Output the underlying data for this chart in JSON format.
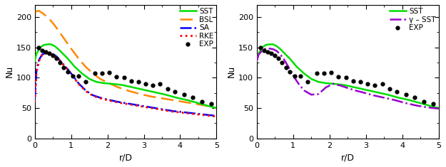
{
  "xlim": [
    0,
    5
  ],
  "ylim": [
    0,
    220
  ],
  "yticks": [
    0,
    50,
    100,
    150,
    200
  ],
  "xticks": [
    0,
    1,
    2,
    3,
    4,
    5
  ],
  "xlabel": "r/D",
  "ylabel": "Nu",
  "background": "#ffffff",
  "sst_x": [
    0.0,
    0.05,
    0.15,
    0.25,
    0.35,
    0.45,
    0.55,
    0.65,
    0.75,
    0.9,
    1.1,
    1.3,
    1.5,
    1.7,
    1.9,
    2.1,
    2.4,
    2.7,
    3.0,
    3.3,
    3.6,
    3.9,
    4.2,
    4.5,
    4.8,
    5.0
  ],
  "sst_y": [
    128,
    140,
    150,
    154,
    155,
    155,
    152,
    147,
    141,
    132,
    118,
    107,
    98,
    93,
    91,
    90,
    88,
    84,
    80,
    76,
    72,
    67,
    63,
    58,
    53,
    50
  ],
  "bsl_x": [
    0.02,
    0.06,
    0.12,
    0.2,
    0.35,
    0.5,
    0.65,
    0.8,
    1.0,
    1.2,
    1.4,
    1.6,
    1.8,
    2.0,
    2.3,
    2.6,
    2.9,
    3.2,
    3.5,
    3.8,
    4.1,
    4.4,
    4.7,
    5.0
  ],
  "bsl_y": [
    208,
    210,
    210,
    207,
    200,
    190,
    178,
    165,
    148,
    132,
    118,
    107,
    98,
    92,
    84,
    78,
    73,
    69,
    66,
    63,
    60,
    57,
    54,
    50
  ],
  "sa_x": [
    0.0,
    0.05,
    0.12,
    0.2,
    0.3,
    0.4,
    0.5,
    0.6,
    0.7,
    0.85,
    1.0,
    1.2,
    1.4,
    1.6,
    1.8,
    2.0,
    2.3,
    2.6,
    2.9,
    3.2,
    3.5,
    3.8,
    4.1,
    4.4,
    4.7,
    5.0
  ],
  "sa_y": [
    65,
    115,
    130,
    138,
    141,
    141,
    139,
    135,
    128,
    118,
    107,
    91,
    79,
    71,
    67,
    64,
    60,
    57,
    54,
    51,
    48,
    45,
    43,
    41,
    39,
    37
  ],
  "rke_x": [
    0.0,
    0.05,
    0.12,
    0.2,
    0.3,
    0.4,
    0.5,
    0.6,
    0.7,
    0.85,
    1.0,
    1.2,
    1.4,
    1.6,
    1.8,
    2.0,
    2.3,
    2.6,
    2.9,
    3.2,
    3.5,
    3.8,
    4.1,
    4.4,
    4.7,
    5.0
  ],
  "rke_y": [
    60,
    110,
    128,
    137,
    140,
    140,
    138,
    133,
    127,
    117,
    106,
    90,
    78,
    70,
    66,
    63,
    59,
    56,
    53,
    50,
    47,
    44,
    42,
    40,
    38,
    36
  ],
  "exp1_x": [
    0.1,
    0.2,
    0.3,
    0.4,
    0.5,
    0.6,
    0.7,
    0.8,
    0.9,
    1.05,
    1.2,
    1.4,
    1.65,
    1.85,
    2.05,
    2.25,
    2.45,
    2.65,
    2.85,
    3.05,
    3.25,
    3.45,
    3.65,
    3.85,
    4.1,
    4.35,
    4.6,
    4.85
  ],
  "exp1_y": [
    150,
    145,
    143,
    140,
    137,
    132,
    125,
    117,
    110,
    103,
    103,
    93,
    107,
    107,
    108,
    102,
    100,
    95,
    93,
    90,
    88,
    90,
    82,
    77,
    72,
    67,
    61,
    57
  ],
  "gamma_sst_x": [
    0.0,
    0.05,
    0.15,
    0.25,
    0.35,
    0.45,
    0.55,
    0.65,
    0.75,
    0.85,
    0.95,
    1.05,
    1.15,
    1.3,
    1.5,
    1.7,
    1.9,
    2.1,
    2.3,
    2.5,
    2.7,
    2.9,
    3.2,
    3.5,
    3.8,
    4.1,
    4.4,
    4.7,
    5.0
  ],
  "gamma_sst_y": [
    128,
    138,
    145,
    148,
    148,
    147,
    144,
    138,
    130,
    120,
    109,
    99,
    90,
    79,
    72,
    73,
    84,
    90,
    87,
    83,
    79,
    76,
    71,
    67,
    63,
    58,
    54,
    51,
    49
  ],
  "exp2_x": [
    0.1,
    0.2,
    0.3,
    0.4,
    0.5,
    0.6,
    0.7,
    0.8,
    0.9,
    1.05,
    1.2,
    1.4,
    1.65,
    1.85,
    2.05,
    2.25,
    2.45,
    2.65,
    2.85,
    3.05,
    3.25,
    3.45,
    3.65,
    3.85,
    4.1,
    4.35,
    4.6,
    4.85
  ],
  "exp2_y": [
    150,
    145,
    143,
    140,
    137,
    132,
    125,
    117,
    110,
    103,
    103,
    93,
    107,
    107,
    108,
    102,
    100,
    95,
    93,
    90,
    88,
    90,
    82,
    77,
    72,
    67,
    61,
    57
  ],
  "color_sst": "#00dd00",
  "color_bsl": "#ff8800",
  "color_sa": "#0000ff",
  "color_rke": "#ff0000",
  "color_exp": "#000000",
  "color_gamma": "#9900cc",
  "lw": 1.8,
  "ms": 3.5,
  "legend_label_gamma": "γ – SST"
}
